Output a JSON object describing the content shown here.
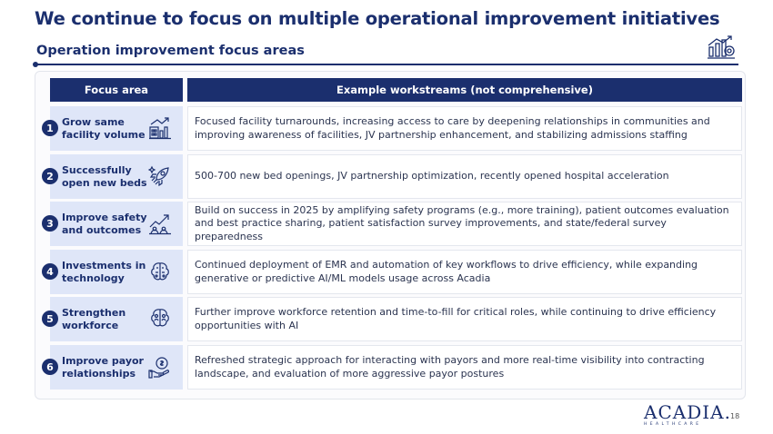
{
  "slide": {
    "title": "We continue to focus on multiple operational improvement initiatives",
    "subtitle": "Operation improvement focus areas",
    "page_number": "18"
  },
  "table": {
    "headers": {
      "focus_area": "Focus area",
      "workstreams": "Example workstreams (not comprehensive)"
    },
    "rows": [
      {
        "number": "1",
        "focus": "Grow same facility volume",
        "icon": "chart-building-icon",
        "workstreams": "Focused facility turnarounds, increasing access to care by deepening relationships in communities and improving awareness of facilities, JV partnership enhancement, and stabilizing admissions staffing"
      },
      {
        "number": "2",
        "focus": "Successfully open new beds",
        "icon": "rocket-icon",
        "workstreams": "500-700 new bed openings, JV partnership optimization, recently opened hospital acceleration"
      },
      {
        "number": "3",
        "focus": "Improve safety and outcomes",
        "icon": "trend-up-icon",
        "workstreams": "Build on success in 2025 by amplifying safety programs (e.g., more training), patient outcomes evaluation and best practice sharing, patient satisfaction survey improvements, and state/federal survey preparedness"
      },
      {
        "number": "4",
        "focus": "Investments in technology",
        "icon": "brain-circuit-icon",
        "workstreams": "Continued deployment of EMR and automation of key workflows to drive efficiency, while expanding generative or predictive AI/ML models usage across Acadia"
      },
      {
        "number": "5",
        "focus": "Strengthen workforce",
        "icon": "workforce-icon",
        "workstreams": "Further improve workforce retention and time-to-fill for critical roles, while continuing to drive efficiency opportunities with AI"
      },
      {
        "number": "6",
        "focus": "Improve payor relationships",
        "icon": "hand-money-icon",
        "workstreams": "Refreshed strategic approach for interacting with payors and more real-time visibility into contracting landscape, and evaluation of more aggressive payor postures"
      }
    ]
  },
  "logo": {
    "name": "ACADIA.",
    "tagline": "HEALTHCARE"
  },
  "colors": {
    "navy": "#1b2f6e",
    "focus_bg": "#dfe6f8"
  }
}
